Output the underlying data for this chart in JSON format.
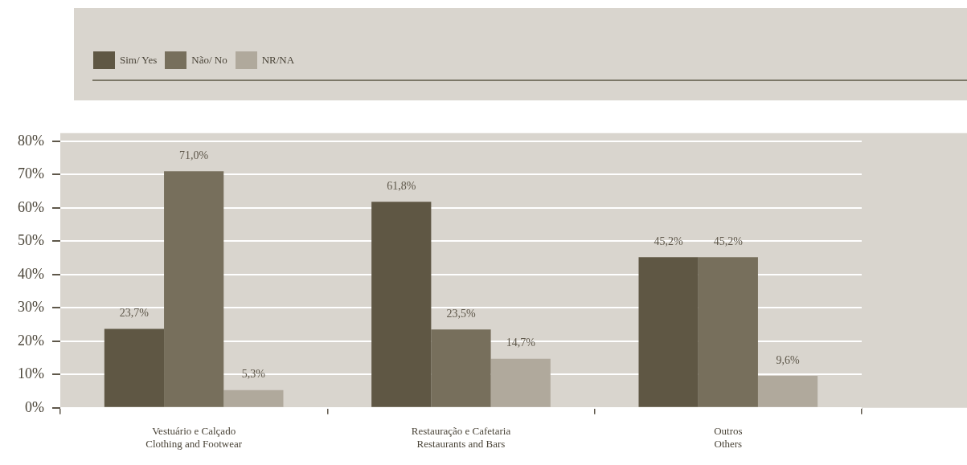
{
  "chart_data": {
    "type": "bar",
    "categories": [
      "Vestuário e Calçado\nClothing and Footwear",
      "Restauração e Cafetaria\nRestaurants and Bars",
      "Outros\nOthers"
    ],
    "series": [
      {
        "name": "Sim/ Yes",
        "color": "#5f5744",
        "values": [
          23.7,
          61.8,
          45.2
        ],
        "value_labels": [
          "23,7%",
          "61,8%",
          "45,2%"
        ]
      },
      {
        "name": "Não/ No",
        "color": "#776f5c",
        "values": [
          71.0,
          23.5,
          45.2
        ],
        "value_labels": [
          "71,0%",
          "23,5%",
          "45,2%"
        ]
      },
      {
        "name": "NR/NA",
        "color": "#b0a99c",
        "values": [
          5.3,
          14.7,
          9.6
        ],
        "value_labels": [
          "5,3%",
          "14,7%",
          "9,6%"
        ]
      }
    ],
    "ylim": [
      0,
      80
    ],
    "yticks": [
      {
        "value": 0,
        "label": "0%"
      },
      {
        "value": 10,
        "label": "10%"
      },
      {
        "value": 20,
        "label": "20%"
      },
      {
        "value": 30,
        "label": "30%"
      },
      {
        "value": 40,
        "label": "40%"
      },
      {
        "value": 50,
        "label": "50%"
      },
      {
        "value": 60,
        "label": "60%"
      },
      {
        "value": 70,
        "label": "70%"
      },
      {
        "value": 80,
        "label": "80%"
      }
    ],
    "grid": "y",
    "legend": "top left"
  }
}
